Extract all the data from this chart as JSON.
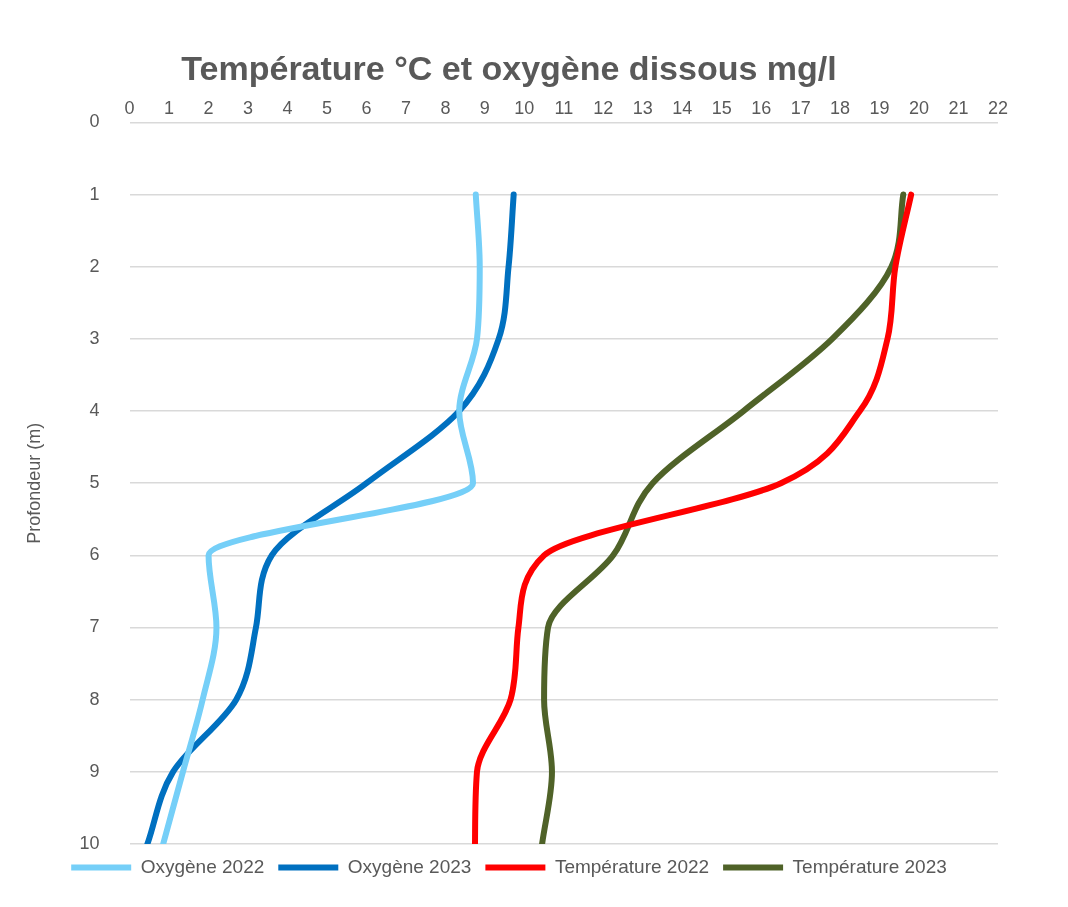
{
  "chart_data": {
    "type": "line",
    "title": "Température °C et oxygène dissous mg/l",
    "ylabel": "Profondeur (m)",
    "xlim": [
      0,
      22
    ],
    "xticks": [
      0,
      1,
      2,
      3,
      4,
      5,
      6,
      7,
      8,
      9,
      10,
      11,
      12,
      13,
      14,
      15,
      16,
      17,
      18,
      19,
      20,
      21,
      22
    ],
    "ylim": [
      10,
      0
    ],
    "yticks": [
      0,
      1,
      2,
      3,
      4,
      5,
      6,
      7,
      8,
      9,
      10
    ],
    "grid": "y",
    "legend": "bottom",
    "marker": "none",
    "line_style": "solid",
    "series": [
      {
        "name": "Oxygène 2022",
        "color": "#75cff8",
        "x": [
          8.77,
          8.87,
          8.8,
          8.35,
          8.7,
          2.0,
          2.2,
          1.85,
          1.35,
          0.85
        ],
        "values": [
          1,
          2,
          3,
          4,
          5,
          6,
          7,
          8,
          9,
          10
        ]
      },
      {
        "name": "Oxygène 2023",
        "color": "#0070c0",
        "x": [
          9.73,
          9.6,
          9.35,
          8.35,
          6.0,
          3.6,
          3.2,
          2.7,
          1.1,
          0.45
        ],
        "values": [
          1,
          2,
          3,
          4,
          5,
          6,
          7,
          8,
          9,
          10
        ]
      },
      {
        "name": "Température 2022",
        "color": "#ff0000",
        "x": [
          19.8,
          19.4,
          19.2,
          18.5,
          16.5,
          10.5,
          9.85,
          9.65,
          8.8,
          8.75
        ],
        "values": [
          1,
          2,
          3,
          4,
          5,
          6,
          7,
          8,
          9,
          10
        ]
      },
      {
        "name": "Température 2023",
        "color": "#4f6228",
        "x": [
          19.6,
          19.3,
          17.8,
          15.55,
          13.25,
          12.25,
          10.6,
          10.5,
          10.7,
          10.45
        ],
        "values": [
          1,
          2,
          3,
          4,
          5,
          6,
          7,
          8,
          9,
          10
        ]
      }
    ]
  }
}
